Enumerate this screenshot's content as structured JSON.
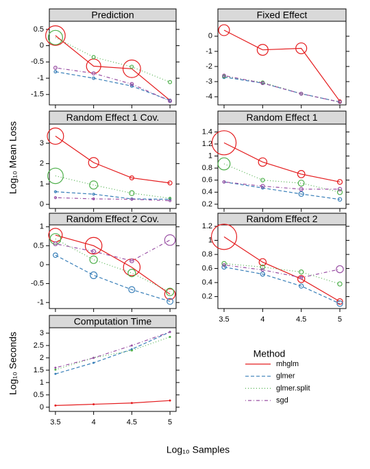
{
  "chart_data": [
    {
      "type": "line",
      "title": "Prediction",
      "x": [
        3.5,
        4,
        4.5,
        5
      ],
      "xlim": [
        3.42,
        5.08
      ],
      "xticks": [
        3.5,
        4,
        4.5,
        5
      ],
      "ylim": [
        -1.82,
        0.75
      ],
      "yticks": [
        0.5,
        0,
        -0.5,
        -1,
        -1.5
      ],
      "series": [
        {
          "name": "mhglm",
          "color": "#e41a1c",
          "line_style": "solid",
          "values": [
            0.31,
            -0.63,
            -0.71,
            -1.68
          ],
          "se": [
            0.3,
            0.22,
            0.27,
            0.04
          ]
        },
        {
          "name": "glmer",
          "color": "#377eb8",
          "line_style": "dashed",
          "values": [
            -0.8,
            -1.0,
            -1.24,
            -1.68
          ],
          "se": [
            0.04,
            0.04,
            0.04,
            0.04
          ]
        },
        {
          "name": "glmer.split",
          "color": "#4daf4a",
          "line_style": "dotted",
          "values": [
            0.25,
            -0.35,
            -0.65,
            -1.12
          ],
          "se": [
            0.22,
            0.05,
            0.05,
            0.05
          ]
        },
        {
          "name": "sgd",
          "color": "#984ea3",
          "line_style": "dotdash",
          "values": [
            -0.68,
            -0.85,
            -1.18,
            -1.7
          ],
          "se": [
            0.05,
            0.05,
            0.05,
            0.05
          ]
        }
      ]
    },
    {
      "type": "line",
      "title": "Fixed Effect",
      "x": [
        3.5,
        4,
        4.5,
        5
      ],
      "xlim": [
        3.42,
        5.08
      ],
      "xticks": [
        3.5,
        4,
        4.5,
        5
      ],
      "ylim": [
        -4.54,
        0.99
      ],
      "yticks": [
        0,
        -1,
        -2,
        -3,
        -4
      ],
      "series": [
        {
          "name": "mhglm",
          "color": "#e41a1c",
          "line_style": "solid",
          "values": [
            0.4,
            -0.9,
            -0.8,
            -4.3
          ],
          "se": [
            0.36,
            0.36,
            0.36,
            0.1
          ]
        },
        {
          "name": "glmer",
          "color": "#377eb8",
          "line_style": "dashed",
          "values": [
            -2.7,
            -3.1,
            -3.8,
            -4.35
          ],
          "se": [
            0.1,
            0.1,
            0.1,
            0.1
          ]
        },
        {
          "name": "glmer.split",
          "color": "#4daf4a",
          "line_style": "dotted",
          "values": [
            -2.65,
            -3.05,
            -3.8,
            -4.35
          ],
          "se": [
            0.1,
            0.1,
            0.1,
            0.1
          ]
        },
        {
          "name": "sgd",
          "color": "#984ea3",
          "line_style": "dotdash",
          "values": [
            -2.6,
            -3.1,
            -3.8,
            -4.35
          ],
          "se": [
            0.1,
            0.1,
            0.1,
            0.1
          ]
        }
      ]
    },
    {
      "type": "line",
      "title": "Random Effect 1 Cov.",
      "x": [
        3.5,
        4,
        4.5,
        5
      ],
      "xlim": [
        3.42,
        5.08
      ],
      "xticks": [
        3.5,
        4,
        4.5,
        5
      ],
      "ylim": [
        -0.2,
        3.94
      ],
      "yticks": [
        0,
        1,
        2,
        3
      ],
      "series": [
        {
          "name": "mhglm",
          "color": "#e41a1c",
          "line_style": "solid",
          "values": [
            3.35,
            2.05,
            1.3,
            1.05
          ],
          "se": [
            0.4,
            0.25,
            0.1,
            0.1
          ]
        },
        {
          "name": "glmer",
          "color": "#377eb8",
          "line_style": "dashed",
          "values": [
            0.62,
            0.5,
            0.27,
            0.25
          ],
          "se": [
            0.05,
            0.05,
            0.05,
            0.05
          ]
        },
        {
          "name": "glmer.split",
          "color": "#4daf4a",
          "line_style": "dotted",
          "values": [
            1.4,
            0.95,
            0.55,
            0.3
          ],
          "se": [
            0.38,
            0.2,
            0.12,
            0.05
          ]
        },
        {
          "name": "sgd",
          "color": "#984ea3",
          "line_style": "dotdash",
          "values": [
            0.33,
            0.27,
            0.25,
            0.18
          ],
          "se": [
            0.05,
            0.05,
            0.05,
            0.05
          ]
        }
      ]
    },
    {
      "type": "line",
      "title": "Random Effect 1",
      "x": [
        3.5,
        4,
        4.5,
        5
      ],
      "xlim": [
        3.42,
        5.08
      ],
      "xticks": [
        3.5,
        4,
        4.5,
        5
      ],
      "ylim": [
        0.13,
        1.53
      ],
      "yticks": [
        0.2,
        0.4,
        0.6,
        0.8,
        1,
        1.2,
        1.4
      ],
      "series": [
        {
          "name": "mhglm",
          "color": "#e41a1c",
          "line_style": "solid",
          "values": [
            1.22,
            0.9,
            0.7,
            0.57
          ],
          "se": [
            0.2,
            0.07,
            0.06,
            0.04
          ]
        },
        {
          "name": "glmer",
          "color": "#377eb8",
          "line_style": "dashed",
          "values": [
            0.57,
            0.47,
            0.37,
            0.28
          ],
          "se": [
            0.02,
            0.02,
            0.04,
            0.03
          ]
        },
        {
          "name": "glmer.split",
          "color": "#4daf4a",
          "line_style": "dotted",
          "values": [
            0.87,
            0.6,
            0.55,
            0.4
          ],
          "se": [
            0.1,
            0.03,
            0.05,
            0.04
          ]
        },
        {
          "name": "sgd",
          "color": "#984ea3",
          "line_style": "dotdash",
          "values": [
            0.57,
            0.5,
            0.45,
            0.45
          ],
          "se": [
            0.02,
            0.03,
            0.03,
            0.03
          ]
        }
      ]
    },
    {
      "type": "line",
      "title": "Random Effect 2 Cov.",
      "x": [
        3.5,
        4,
        4.5,
        5
      ],
      "xlim": [
        3.42,
        5.08
      ],
      "xticks": [
        3.5,
        4,
        4.5,
        5
      ],
      "ylim": [
        -1.16,
        1.05
      ],
      "yticks": [
        1,
        0.5,
        0,
        -0.5,
        -1
      ],
      "series": [
        {
          "name": "mhglm",
          "color": "#e41a1c",
          "line_style": "solid",
          "values": [
            0.78,
            0.5,
            -0.07,
            -0.78
          ],
          "se": [
            0.18,
            0.22,
            0.22,
            0.14
          ]
        },
        {
          "name": "glmer",
          "color": "#377eb8",
          "line_style": "dashed",
          "values": [
            0.25,
            -0.28,
            -0.66,
            -0.97
          ],
          "se": [
            0.06,
            0.09,
            0.08,
            0.08
          ]
        },
        {
          "name": "glmer.split",
          "color": "#4daf4a",
          "line_style": "dotted",
          "values": [
            0.68,
            0.13,
            -0.22,
            -0.72
          ],
          "se": [
            0.14,
            0.1,
            0.1,
            0.1
          ]
        },
        {
          "name": "sgd",
          "color": "#984ea3",
          "line_style": "dotdash",
          "values": [
            0.55,
            0.35,
            0.1,
            0.65
          ],
          "se": [
            0.05,
            0.05,
            0.05,
            0.14
          ]
        }
      ]
    },
    {
      "type": "line",
      "title": "Random Effect 2",
      "x": [
        3.5,
        4,
        4.5,
        5
      ],
      "xlim": [
        3.42,
        5.08
      ],
      "xticks": [
        3.5,
        4,
        4.5,
        5
      ],
      "ylim": [
        0.03,
        1.22
      ],
      "yticks": [
        0.2,
        0.4,
        0.6,
        0.8,
        1,
        1.2
      ],
      "series": [
        {
          "name": "mhglm",
          "color": "#e41a1c",
          "line_style": "solid",
          "values": [
            1.05,
            0.69,
            0.45,
            0.13
          ],
          "se": [
            0.18,
            0.05,
            0.05,
            0.04
          ]
        },
        {
          "name": "glmer",
          "color": "#377eb8",
          "line_style": "dashed",
          "values": [
            0.62,
            0.52,
            0.35,
            0.1
          ],
          "se": [
            0.03,
            0.03,
            0.03,
            0.04
          ]
        },
        {
          "name": "glmer.split",
          "color": "#4daf4a",
          "line_style": "dotted",
          "values": [
            0.67,
            0.62,
            0.55,
            0.38
          ],
          "se": [
            0.03,
            0.03,
            0.03,
            0.03
          ]
        },
        {
          "name": "sgd",
          "color": "#984ea3",
          "line_style": "dotdash",
          "values": [
            0.65,
            0.58,
            0.47,
            0.59
          ],
          "se": [
            0.02,
            0.02,
            0.02,
            0.05
          ]
        }
      ]
    },
    {
      "type": "line",
      "title": "Computation Time",
      "ylabel": "Log₁₀ Seconds",
      "x": [
        3.5,
        4,
        4.5,
        5
      ],
      "xlim": [
        3.42,
        5.08
      ],
      "xticks": [
        3.5,
        4,
        4.5,
        5
      ],
      "ylim": [
        -0.17,
        3.22
      ],
      "yticks": [
        0,
        0.5,
        1,
        1.5,
        2,
        2.5,
        3
      ],
      "series": [
        {
          "name": "mhglm",
          "color": "#e41a1c",
          "line_style": "solid",
          "values": [
            0.07,
            0.12,
            0.17,
            0.27
          ]
        },
        {
          "name": "glmer",
          "color": "#377eb8",
          "line_style": "dashed",
          "values": [
            1.35,
            1.8,
            2.35,
            3.05
          ]
        },
        {
          "name": "glmer.split",
          "color": "#4daf4a",
          "line_style": "dotted",
          "values": [
            1.52,
            2.0,
            2.3,
            2.85
          ]
        },
        {
          "name": "sgd",
          "color": "#984ea3",
          "line_style": "dotdash",
          "values": [
            1.6,
            2.0,
            2.5,
            3.05
          ]
        }
      ]
    }
  ],
  "shared_ylabel": "Log₁₀ Mean Loss",
  "xlabel": "Log₁₀ Samples",
  "legend_title": "Method"
}
